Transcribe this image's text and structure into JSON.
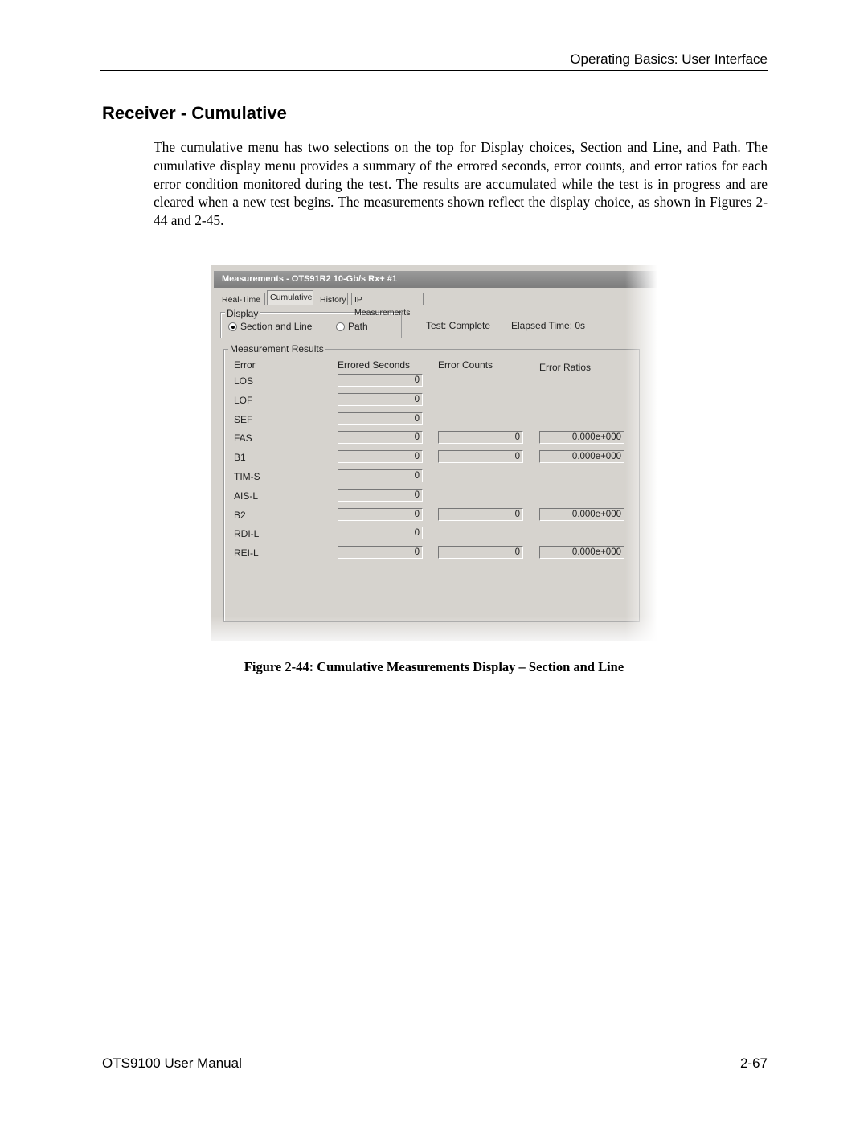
{
  "header": {
    "section": "Operating Basics: User Interface"
  },
  "heading": "Receiver - Cumulative",
  "body": "The cumulative menu has two selections on the top for Display choices, Section and Line, and Path.  The cumulative display menu provides a summary of the errored seconds, error counts, and error ratios for each error condition monitored during the test.  The results are accumulated while the test is in progress and are cleared when a new test begins.  The measurements shown reflect the display choice, as shown in Figures 2-44 and 2-45.",
  "figure": {
    "window_title": "Measurements - OTS91R2 10-Gb/s Rx+ #1",
    "tabs": [
      "Real-Time",
      "Cumulative",
      "History",
      "IP Measurements"
    ],
    "display": {
      "label": "Display",
      "options": [
        "Section and Line",
        "Path"
      ]
    },
    "status": "Test: Complete",
    "elapsed": "Elapsed Time: 0s",
    "results": {
      "label": "Measurement Results",
      "columns": [
        "Error",
        "Errored Seconds",
        "Error Counts",
        "Error Ratios"
      ],
      "rows": [
        {
          "error": "LOS",
          "errored_seconds": 0
        },
        {
          "error": "LOF",
          "errored_seconds": 0
        },
        {
          "error": "SEF",
          "errored_seconds": 0
        },
        {
          "error": "FAS",
          "errored_seconds": 0,
          "error_counts": 0,
          "error_ratios": "0.000e+000"
        },
        {
          "error": "B1",
          "errored_seconds": 0,
          "error_counts": 0,
          "error_ratios": "0.000e+000"
        },
        {
          "error": "TIM-S",
          "errored_seconds": 0
        },
        {
          "error": "AIS-L",
          "errored_seconds": 0
        },
        {
          "error": "B2",
          "errored_seconds": 0,
          "error_counts": 0,
          "error_ratios": "0.000e+000"
        },
        {
          "error": "RDI-L",
          "errored_seconds": 0
        },
        {
          "error": "REI-L",
          "errored_seconds": 0,
          "error_counts": 0,
          "error_ratios": "0.000e+000"
        }
      ]
    }
  },
  "caption": "Figure 2-44: Cumulative Measurements Display – Section and Line",
  "footer": {
    "left": "OTS9100 User Manual",
    "right": "2-67"
  }
}
